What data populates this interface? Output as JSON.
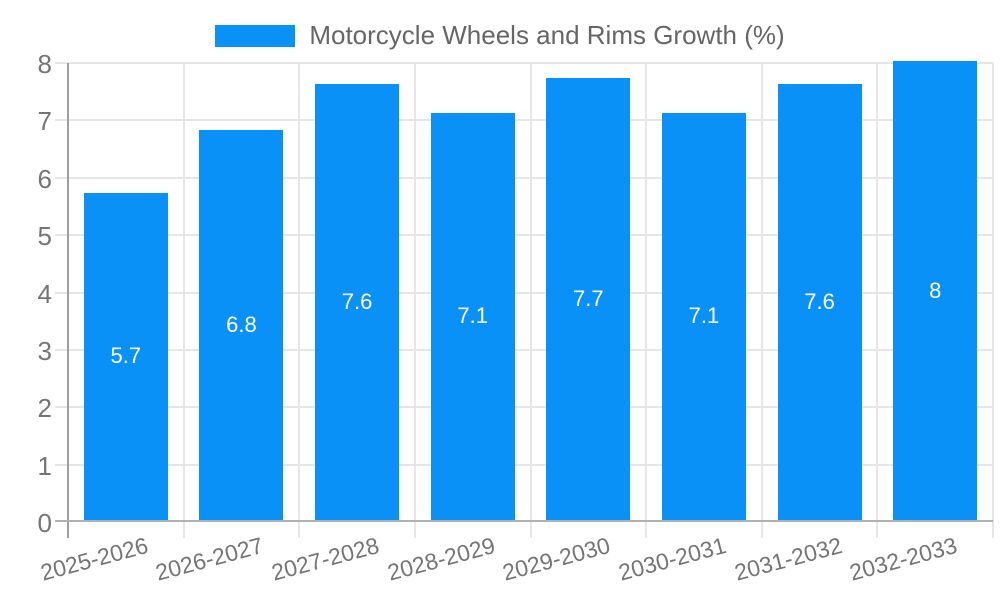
{
  "chart_data": {
    "type": "bar",
    "title": "Motorcycle Wheels and Rims Growth (%)",
    "categories": [
      "2025-2026",
      "2026-2027",
      "2027-2028",
      "2028-2029",
      "2029-2030",
      "2030-2031",
      "2031-2032",
      "2032-2033"
    ],
    "values": [
      5.7,
      6.8,
      7.6,
      7.1,
      7.7,
      7.1,
      7.6,
      8
    ],
    "xlabel": "",
    "ylabel": "",
    "ylim": [
      0,
      8
    ],
    "yticks": [
      0,
      1,
      2,
      3,
      4,
      5,
      6,
      7,
      8
    ],
    "grid": true,
    "legend_position": "top",
    "value_labels_inside_bars": true,
    "colors": {
      "bar": "#0991f7",
      "bar_label": "#ffffff",
      "axis_text": "#757575",
      "legend_text": "#666666",
      "grid": "#e6e6e6",
      "axis_line": "#9e9e9e",
      "baseline": "#b1b1b1",
      "background": "#ffffff"
    }
  }
}
